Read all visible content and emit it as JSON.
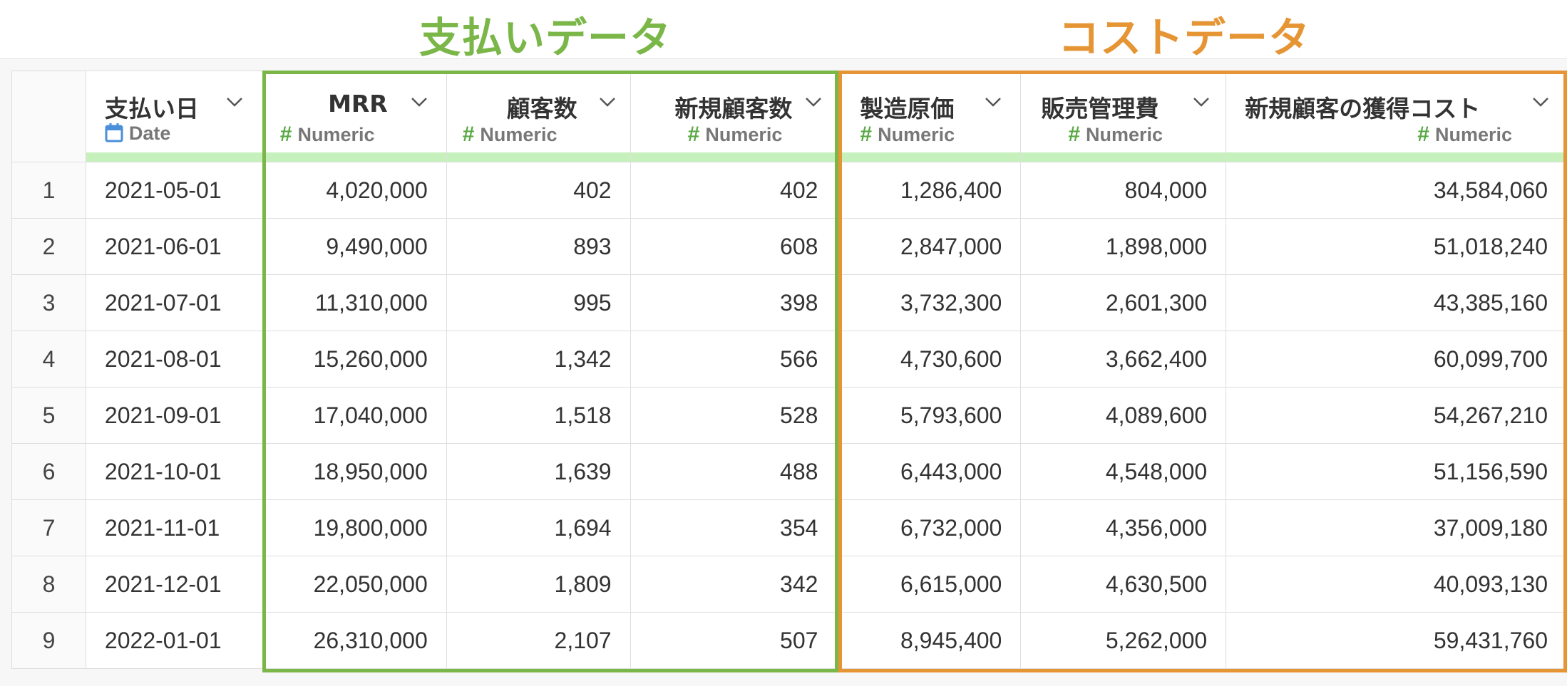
{
  "group_titles": {
    "payment": "支払いデータ",
    "cost": "コストデータ"
  },
  "colors": {
    "payment_accent": "#7ab648",
    "cost_accent": "#e69535",
    "numeric_hash": "#59a844",
    "date_icon": "#4a8fd8",
    "header_bar": "#c6f1bc"
  },
  "columns": [
    {
      "name": "支払い日",
      "type": "Date",
      "icon": "calendar-icon"
    },
    {
      "name": "MRR",
      "type": "Numeric",
      "icon": "hash-icon"
    },
    {
      "name": "顧客数",
      "type": "Numeric",
      "icon": "hash-icon"
    },
    {
      "name": "新規顧客数",
      "type": "Numeric",
      "icon": "hash-icon"
    },
    {
      "name": "製造原価",
      "type": "Numeric",
      "icon": "hash-icon"
    },
    {
      "name": "販売管理費",
      "type": "Numeric",
      "icon": "hash-icon"
    },
    {
      "name": "新規顧客の獲得コスト",
      "type": "Numeric",
      "icon": "hash-icon"
    }
  ],
  "rows": [
    {
      "n": "1",
      "cells": [
        "2021-05-01",
        "4,020,000",
        "402",
        "402",
        "1,286,400",
        "804,000",
        "34,584,060"
      ]
    },
    {
      "n": "2",
      "cells": [
        "2021-06-01",
        "9,490,000",
        "893",
        "608",
        "2,847,000",
        "1,898,000",
        "51,018,240"
      ]
    },
    {
      "n": "3",
      "cells": [
        "2021-07-01",
        "11,310,000",
        "995",
        "398",
        "3,732,300",
        "2,601,300",
        "43,385,160"
      ]
    },
    {
      "n": "4",
      "cells": [
        "2021-08-01",
        "15,260,000",
        "1,342",
        "566",
        "4,730,600",
        "3,662,400",
        "60,099,700"
      ]
    },
    {
      "n": "5",
      "cells": [
        "2021-09-01",
        "17,040,000",
        "1,518",
        "528",
        "5,793,600",
        "4,089,600",
        "54,267,210"
      ]
    },
    {
      "n": "6",
      "cells": [
        "2021-10-01",
        "18,950,000",
        "1,639",
        "488",
        "6,443,000",
        "4,548,000",
        "51,156,590"
      ]
    },
    {
      "n": "7",
      "cells": [
        "2021-11-01",
        "19,800,000",
        "1,694",
        "354",
        "6,732,000",
        "4,356,000",
        "37,009,180"
      ]
    },
    {
      "n": "8",
      "cells": [
        "2021-12-01",
        "22,050,000",
        "1,809",
        "342",
        "6,615,000",
        "4,630,500",
        "40,093,130"
      ]
    },
    {
      "n": "9",
      "cells": [
        "2022-01-01",
        "26,310,000",
        "2,107",
        "507",
        "8,945,400",
        "5,262,000",
        "59,431,760"
      ]
    }
  ]
}
